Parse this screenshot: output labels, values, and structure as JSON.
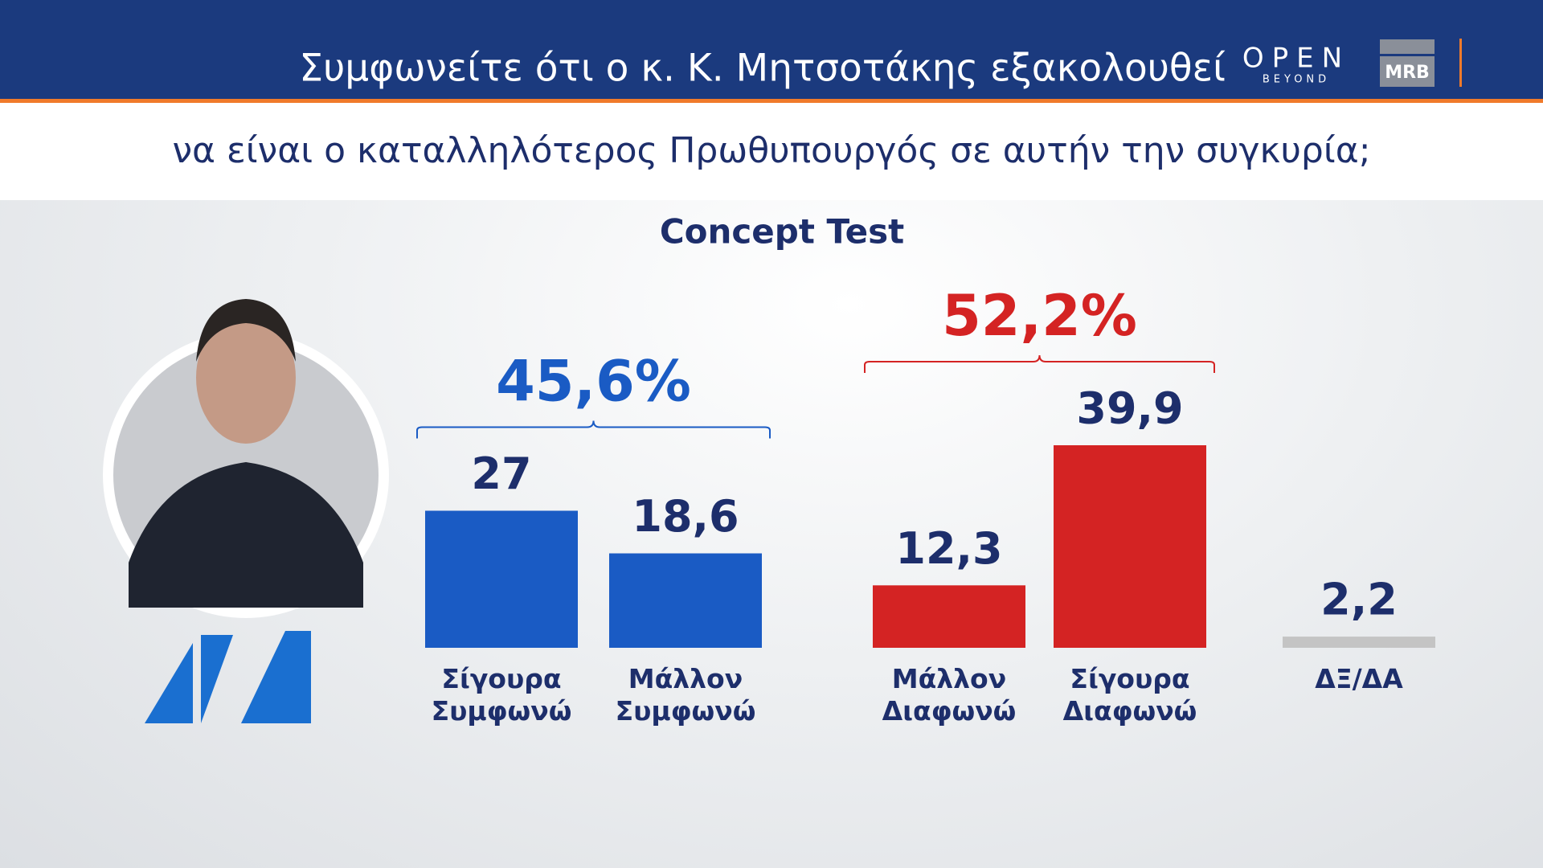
{
  "header": {
    "title": "Συμφωνείτε ότι ο κ. Κ. Μητσοτάκης εξακολουθεί",
    "subtitle": "να είναι ο καταλληλότερος Πρωθυπουργός σε αυτήν την συγκυρία;"
  },
  "logos": {
    "open": "OPEN",
    "beyond": "BEYOND",
    "mrb": "MRB"
  },
  "chart_data": {
    "type": "bar",
    "title": "Concept Test",
    "categories": [
      "Σίγουρα Συμφωνώ",
      "Μάλλον Συμφωνώ",
      "Μάλλον Διαφωνώ",
      "Σίγουρα Διαφωνώ",
      "ΔΞ/ΔΑ"
    ],
    "values": [
      27,
      18.6,
      12.3,
      39.9,
      2.2
    ],
    "value_labels": [
      "27",
      "18,6",
      "12,3",
      "39,9",
      "2,2"
    ],
    "colors": [
      "#1a5bc4",
      "#1a5bc4",
      "#d42323",
      "#d42323",
      "#c4c4c4"
    ],
    "groups": [
      {
        "label": "45,6%",
        "value": 45.6,
        "color": "#1a5bc4"
      },
      {
        "label": "52,2%",
        "value": 52.2,
        "color": "#d42323"
      }
    ]
  }
}
